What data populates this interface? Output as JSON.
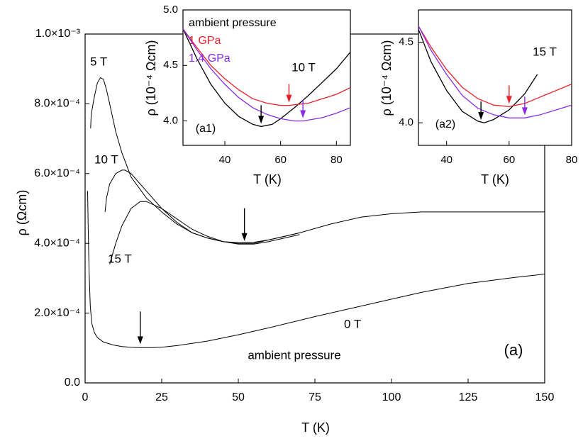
{
  "chart_data": [
    {
      "type": "line",
      "xlabel": "T (K)",
      "ylabel": "ρ (Ωcm)",
      "xlim": [
        0,
        150
      ],
      "xticks": [
        0,
        25,
        50,
        75,
        100,
        125,
        150
      ],
      "ylim": [
        0,
        0.001
      ],
      "yticks": [
        {
          "value": 0,
          "label": "0.0"
        },
        {
          "value": 0.0002,
          "label": "2.0×10⁻⁴"
        },
        {
          "value": 0.0004,
          "label": "4.0×10⁻⁴"
        },
        {
          "value": 0.0006,
          "label": "6.0×10⁻⁴"
        },
        {
          "value": 0.0008,
          "label": "8.0×10⁻⁴"
        },
        {
          "value": 0.001,
          "label": "1.0×10⁻³"
        }
      ],
      "series": [
        {
          "name": "5 T",
          "color": "#000000",
          "x": [
            1.8,
            2,
            3,
            4,
            5,
            6,
            7,
            8,
            10,
            12,
            15,
            20,
            25,
            30,
            35,
            40,
            45,
            50,
            55,
            60,
            70,
            80,
            90,
            100,
            110,
            125,
            150
          ],
          "values": [
            0.00073,
            0.00077,
            0.00082,
            0.00086,
            0.000875,
            0.00087,
            0.00084,
            0.0008,
            0.00072,
            0.00066,
            0.00059,
            0.00053,
            0.00049,
            0.000455,
            0.00043,
            0.000415,
            0.000405,
            0.0004,
            0.0004,
            0.00041,
            0.00043,
            0.000455,
            0.000475,
            0.000485,
            0.00049,
            0.00049,
            0.00049
          ]
        },
        {
          "name": "10 T",
          "color": "#000000",
          "x": [
            6.5,
            7,
            8,
            10,
            12,
            13,
            15,
            20,
            25,
            30,
            35,
            40,
            45,
            50,
            55,
            60,
            65,
            70
          ],
          "values": [
            0.00049,
            0.00053,
            0.00057,
            0.0006,
            0.00061,
            0.00061,
            0.0006,
            0.00055,
            0.0005,
            0.00046,
            0.00043,
            0.000415,
            0.000405,
            0.000402,
            0.000403,
            0.00041,
            0.00042,
            0.00043
          ]
        },
        {
          "name": "15 T",
          "color": "#000000",
          "x": [
            8,
            10,
            12,
            15,
            18,
            20,
            25,
            30,
            35,
            40,
            45,
            50,
            55,
            60,
            65,
            70
          ],
          "values": [
            0.00034,
            0.0004,
            0.00045,
            0.0005,
            0.00052,
            0.00052,
            0.0005,
            0.00047,
            0.00044,
            0.00042,
            0.000405,
            0.000398,
            0.000398,
            0.000405,
            0.000415,
            0.000425
          ]
        },
        {
          "name": "0 T",
          "color": "#000000",
          "x": [
            0.8,
            1,
            1.3,
            1.7,
            2.2,
            3,
            4,
            6,
            9,
            12,
            15,
            18,
            22,
            26,
            30,
            40,
            50,
            60,
            75,
            90,
            100,
            110,
            125,
            140,
            150
          ],
          "values": [
            0.00055,
            0.00045,
            0.00032,
            0.00022,
            0.00017,
            0.000145,
            0.00013,
            0.000117,
            0.000109,
            0.000104,
            0.000102,
            0.000101,
            0.000101,
            0.000103,
            0.000107,
            0.00012,
            0.000138,
            0.000158,
            0.00019,
            0.00022,
            0.00024,
            0.00026,
            0.000285,
            0.000302,
            0.000312
          ]
        }
      ],
      "arrows": [
        {
          "x": 18,
          "y": 0.000103,
          "color": "#000000"
        },
        {
          "x": 52,
          "y": 0.000399,
          "color": "#000000"
        }
      ],
      "annotations": [
        "ambient pressure",
        "(a)"
      ]
    },
    {
      "type": "line",
      "xlabel": "T (K)",
      "ylabel": "ρ (10⁻⁴ Ωcm)",
      "xlim": [
        25,
        85
      ],
      "xticks": [
        40,
        60,
        80
      ],
      "ylim": [
        3.78,
        5.0
      ],
      "yticks": [
        {
          "value": 4.0,
          "label": "4.0"
        },
        {
          "value": 4.5,
          "label": "4.5"
        },
        {
          "value": 5.0,
          "label": "5.0"
        }
      ],
      "series": [
        {
          "name": "ambient pressure",
          "color": "#000000",
          "x": [
            25,
            30,
            35,
            40,
            45,
            50,
            53,
            57,
            60,
            65,
            70,
            75,
            80,
            85
          ],
          "values": [
            4.83,
            4.56,
            4.33,
            4.16,
            4.04,
            3.97,
            3.95,
            3.97,
            4.02,
            4.12,
            4.23,
            4.35,
            4.47,
            4.62
          ]
        },
        {
          "name": "1 GPa",
          "color": "#e8202a",
          "x": [
            25,
            30,
            35,
            40,
            45,
            50,
            55,
            60,
            63,
            70,
            80,
            85
          ],
          "values": [
            4.83,
            4.66,
            4.5,
            4.38,
            4.28,
            4.2,
            4.16,
            4.14,
            4.14,
            4.16,
            4.24,
            4.3
          ]
        },
        {
          "name": "1.4 GPa",
          "color": "#8a2be2",
          "x": [
            25,
            30,
            35,
            40,
            45,
            50,
            55,
            60,
            65,
            68,
            75,
            80,
            85
          ],
          "values": [
            4.83,
            4.64,
            4.47,
            4.33,
            4.21,
            4.12,
            4.06,
            4.02,
            4.0,
            4.0,
            4.03,
            4.07,
            4.12
          ]
        }
      ],
      "arrows": [
        {
          "x": 53,
          "y": 3.95,
          "color": "#000000"
        },
        {
          "x": 63,
          "y": 4.14,
          "color": "#e8202a"
        },
        {
          "x": 68,
          "y": 4.0,
          "color": "#8a2be2"
        }
      ],
      "annotations": [
        "10 T",
        "(a1)"
      ]
    },
    {
      "type": "line",
      "xlabel": "T (K)",
      "ylabel": "ρ (10⁻⁴ Ωcm)",
      "xlim": [
        31,
        80
      ],
      "xticks": [
        40,
        60,
        80
      ],
      "ylim": [
        3.86,
        4.7
      ],
      "yticks": [
        {
          "value": 4.0,
          "label": "4.0"
        },
        {
          "value": 4.5,
          "label": "4.5"
        }
      ],
      "series": [
        {
          "color": "#000000",
          "x": [
            31,
            35,
            40,
            45,
            50,
            52,
            55,
            60,
            65,
            69
          ],
          "values": [
            4.58,
            4.38,
            4.2,
            4.07,
            4.01,
            4.0,
            4.02,
            4.08,
            4.18,
            4.3
          ]
        },
        {
          "color": "#e8202a",
          "x": [
            31,
            35,
            40,
            45,
            50,
            55,
            60,
            65,
            70,
            80
          ],
          "values": [
            4.6,
            4.47,
            4.33,
            4.22,
            4.15,
            4.11,
            4.1,
            4.12,
            4.16,
            4.24
          ]
        },
        {
          "color": "#8a2be2",
          "x": [
            31,
            35,
            40,
            45,
            50,
            55,
            60,
            65,
            70,
            80
          ],
          "values": [
            4.6,
            4.45,
            4.3,
            4.17,
            4.09,
            4.05,
            4.03,
            4.03,
            4.05,
            4.11
          ]
        }
      ],
      "arrows": [
        {
          "x": 51,
          "y": 4.0,
          "color": "#000000"
        },
        {
          "x": 60,
          "y": 4.1,
          "color": "#e8202a"
        },
        {
          "x": 65,
          "y": 4.03,
          "color": "#8a2be2"
        }
      ],
      "annotations": [
        "15 T",
        "(a2)"
      ]
    }
  ]
}
